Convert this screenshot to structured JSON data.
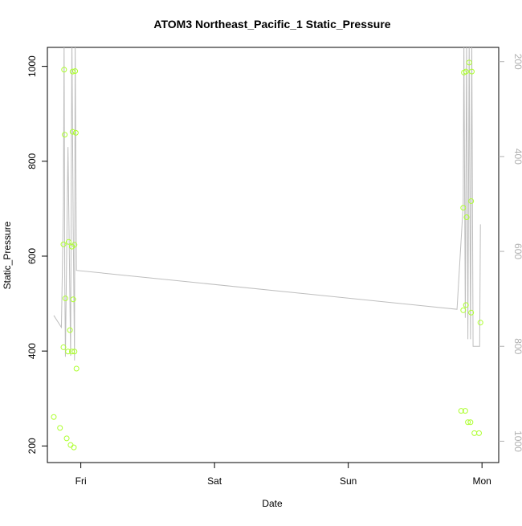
{
  "chart_data": {
    "type": "scatter",
    "title": "ATOM3 Northeast_Pacific_1 Static_Pressure",
    "xlabel": "Date",
    "ylabel": "Static_Pressure",
    "x_axis": {
      "type": "date",
      "range": [
        "2016-07-14T18:00",
        "2016-07-18T03:00"
      ],
      "ticks": [
        {
          "label": "Fri",
          "date": "2016-07-15T00:00"
        },
        {
          "label": "Sat",
          "date": "2016-07-16T00:00"
        },
        {
          "label": "Sun",
          "date": "2016-07-17T00:00"
        },
        {
          "label": "Mon",
          "date": "2016-07-18T00:00"
        }
      ]
    },
    "y_axis": {
      "range": [
        165,
        1040
      ],
      "ticks": [
        200,
        400,
        600,
        800,
        1000
      ]
    },
    "y2_axis": {
      "reversed": true,
      "range": [
        1045,
        170
      ],
      "ticks": [
        200,
        400,
        600,
        800,
        1000
      ],
      "color": "#b0b0b0"
    },
    "grid": false,
    "series": [
      {
        "kind": "points",
        "color": "#adff2f",
        "axis": "left",
        "points": [
          {
            "x": "2016-07-14T19:09",
            "y": 261
          },
          {
            "x": "2016-07-14T20:16",
            "y": 238
          },
          {
            "x": "2016-07-14T20:53",
            "y": 408
          },
          {
            "x": "2016-07-14T20:53",
            "y": 625
          },
          {
            "x": "2016-07-14T21:00",
            "y": 993
          },
          {
            "x": "2016-07-14T21:07",
            "y": 856
          },
          {
            "x": "2016-07-14T21:14",
            "y": 511
          },
          {
            "x": "2016-07-14T21:28",
            "y": 216
          },
          {
            "x": "2016-07-14T21:42",
            "y": 399
          },
          {
            "x": "2016-07-14T21:49",
            "y": 630
          },
          {
            "x": "2016-07-14T22:03",
            "y": 444
          },
          {
            "x": "2016-07-14T22:10",
            "y": 202
          },
          {
            "x": "2016-07-14T22:24",
            "y": 399
          },
          {
            "x": "2016-07-14T22:24",
            "y": 620
          },
          {
            "x": "2016-07-14T22:31",
            "y": 989
          },
          {
            "x": "2016-07-14T22:31",
            "y": 862
          },
          {
            "x": "2016-07-14T22:38",
            "y": 509
          },
          {
            "x": "2016-07-14T22:45",
            "y": 197
          },
          {
            "x": "2016-07-14T22:52",
            "y": 399
          },
          {
            "x": "2016-07-14T22:52",
            "y": 624
          },
          {
            "x": "2016-07-14T22:59",
            "y": 990
          },
          {
            "x": "2016-07-14T23:06",
            "y": 860
          },
          {
            "x": "2016-07-14T23:13",
            "y": 363
          },
          {
            "x": "2016-07-17T20:16",
            "y": 274
          },
          {
            "x": "2016-07-17T20:38",
            "y": 486
          },
          {
            "x": "2016-07-17T20:38",
            "y": 702
          },
          {
            "x": "2016-07-17T20:45",
            "y": 987
          },
          {
            "x": "2016-07-17T21:00",
            "y": 274
          },
          {
            "x": "2016-07-17T21:07",
            "y": 497
          },
          {
            "x": "2016-07-17T21:07",
            "y": 989
          },
          {
            "x": "2016-07-17T21:14",
            "y": 682
          },
          {
            "x": "2016-07-17T21:28",
            "y": 250
          },
          {
            "x": "2016-07-17T21:42",
            "y": 1008
          },
          {
            "x": "2016-07-17T21:56",
            "y": 250
          },
          {
            "x": "2016-07-17T22:03",
            "y": 481
          },
          {
            "x": "2016-07-17T22:03",
            "y": 716
          },
          {
            "x": "2016-07-17T22:10",
            "y": 989
          },
          {
            "x": "2016-07-17T22:38",
            "y": 227
          },
          {
            "x": "2016-07-17T23:28",
            "y": 227
          },
          {
            "x": "2016-07-17T23:43",
            "y": 460
          }
        ]
      },
      {
        "kind": "line",
        "color": "#bebebe",
        "axis": "right",
        "points": [
          {
            "x": "2016-07-14T19:09",
            "y": 735
          },
          {
            "x": "2016-07-14T20:31",
            "y": 760
          },
          {
            "x": "2016-07-14T20:53",
            "y": 500
          },
          {
            "x": "2016-07-14T21:00",
            "y": 150
          },
          {
            "x": "2016-07-14T21:07",
            "y": 650
          },
          {
            "x": "2016-07-14T21:14",
            "y": 822
          },
          {
            "x": "2016-07-14T21:42",
            "y": 380
          },
          {
            "x": "2016-07-14T22:10",
            "y": 820
          },
          {
            "x": "2016-07-14T22:24",
            "y": 150
          },
          {
            "x": "2016-07-14T22:38",
            "y": 550
          },
          {
            "x": "2016-07-14T22:52",
            "y": 830
          },
          {
            "x": "2016-07-14T22:59",
            "y": 150
          },
          {
            "x": "2016-07-14T23:13",
            "y": 640
          },
          {
            "x": "2016-07-17T19:31",
            "y": 722
          },
          {
            "x": "2016-07-17T20:38",
            "y": 500
          },
          {
            "x": "2016-07-17T20:45",
            "y": 150
          },
          {
            "x": "2016-07-17T21:00",
            "y": 740
          },
          {
            "x": "2016-07-17T21:14",
            "y": 150
          },
          {
            "x": "2016-07-17T21:28",
            "y": 785
          },
          {
            "x": "2016-07-17T21:42",
            "y": 150
          },
          {
            "x": "2016-07-17T21:56",
            "y": 785
          },
          {
            "x": "2016-07-17T22:10",
            "y": 150
          },
          {
            "x": "2016-07-17T22:24",
            "y": 800
          },
          {
            "x": "2016-07-17T23:35",
            "y": 800
          },
          {
            "x": "2016-07-17T23:43",
            "y": 543
          }
        ]
      }
    ]
  }
}
